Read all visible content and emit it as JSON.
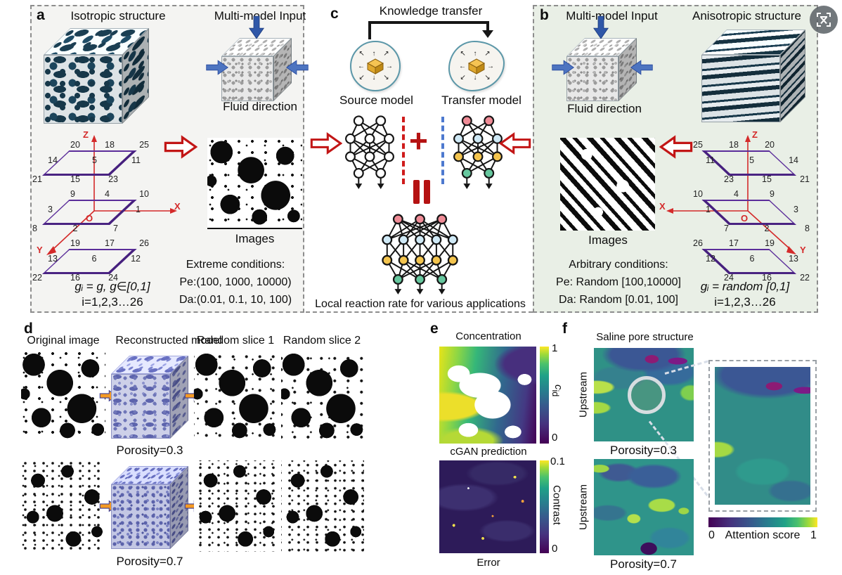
{
  "panel_a": {
    "label": "a",
    "title": "Isotropic structure",
    "input_title": "Multi-model Input",
    "fluid_label": "Fluid direction",
    "images_label": "Images",
    "cond_title": "Extreme conditions:",
    "cond_pe": "Pe:(100, 1000, 10000)",
    "cond_da": "Da:(0.01, 0.1, 10, 100)",
    "note_g": "gᵢ = g, g∈[0,1]",
    "note_i": "i=1,2,3…26",
    "axes": {
      "z": "Z",
      "x": "X",
      "y": "Y",
      "o": "O"
    },
    "planes": [
      {
        "top": [
          "20",
          "18",
          "25"
        ],
        "mid": [
          "14",
          "5",
          "11"
        ],
        "bot": [
          "21",
          "15",
          "23"
        ]
      },
      {
        "top": [
          "9",
          "4",
          "10"
        ],
        "mid": [
          "3",
          "",
          "1"
        ],
        "bot": [
          "8",
          "2",
          "7"
        ]
      },
      {
        "top": [
          "19",
          "17",
          "26"
        ],
        "mid": [
          "13",
          "6",
          "12"
        ],
        "bot": [
          "22",
          "16",
          "24"
        ]
      }
    ]
  },
  "panel_b": {
    "label": "b",
    "title": "Anisotropic structure",
    "input_title": "Multi-model Input",
    "fluid_label": "Fluid direction",
    "images_label": "Images",
    "cond_title": "Arbitrary conditions:",
    "cond_pe": "Pe: Random [100,10000]",
    "cond_da": "Da: Random [0.01, 100]",
    "note_g": "gᵢ = random [0,1]",
    "note_i": "i=1,2,3…26",
    "axes": {
      "z": "Z",
      "x": "X",
      "y": "Y",
      "o": "O"
    },
    "planes": [
      {
        "top": [
          "25",
          "18",
          "20"
        ],
        "mid": [
          "11",
          "5",
          "14"
        ],
        "bot": [
          "23",
          "15",
          "21"
        ]
      },
      {
        "top": [
          "10",
          "4",
          "9"
        ],
        "mid": [
          "1",
          "",
          "3"
        ],
        "bot": [
          "7",
          "2",
          "8"
        ]
      },
      {
        "top": [
          "26",
          "17",
          "19"
        ],
        "mid": [
          "12",
          "6",
          "13"
        ],
        "bot": [
          "24",
          "16",
          "22"
        ]
      }
    ]
  },
  "panel_c": {
    "label": "c",
    "kt_label": "Knowledge transfer",
    "source_label": "Source model",
    "transfer_label": "Transfer model",
    "plus": "+",
    "caption": "Local reaction rate for various applications"
  },
  "panel_d": {
    "label": "d",
    "headers": [
      "Original image",
      "Reconstructed model",
      "Random slice 1",
      "Random slice 2"
    ],
    "row1_caption": "Porosity=0.3",
    "row2_caption": "Porosity=0.7"
  },
  "panel_e": {
    "label": "e",
    "map1_title": "Concentration",
    "cbar1_max": "1",
    "cbar1_min": "0",
    "cbar1_sym": "c",
    "cbar1_sub": "id",
    "map2_title": "cGAN prediction",
    "cbar2_max": "0.1",
    "cbar2_min": "0",
    "cbar2_label": "Contrast",
    "map2_caption": "Error"
  },
  "panel_f": {
    "label": "f",
    "title": "Saline pore structure",
    "map1_side": "Upstream",
    "map1_caption": "Porosity=0.3",
    "map2_side": "Upstream",
    "map2_caption": "Porosity=0.7",
    "cbar_min": "0",
    "cbar_label": "Attention score",
    "cbar_max": "1"
  },
  "icons": {
    "radiate_row1": "↖ ↑ ↗",
    "radiate_left": "←",
    "radiate_right": "→",
    "radiate_row3": "↙ ↓ ↘"
  },
  "colors": {
    "accent_red": "#c21616",
    "plane_purple": "#5b2d9a",
    "panel_b_green": "#e9efe6",
    "arrow_blue": "#2f57a8",
    "arrow_orange": "#f59a23"
  }
}
